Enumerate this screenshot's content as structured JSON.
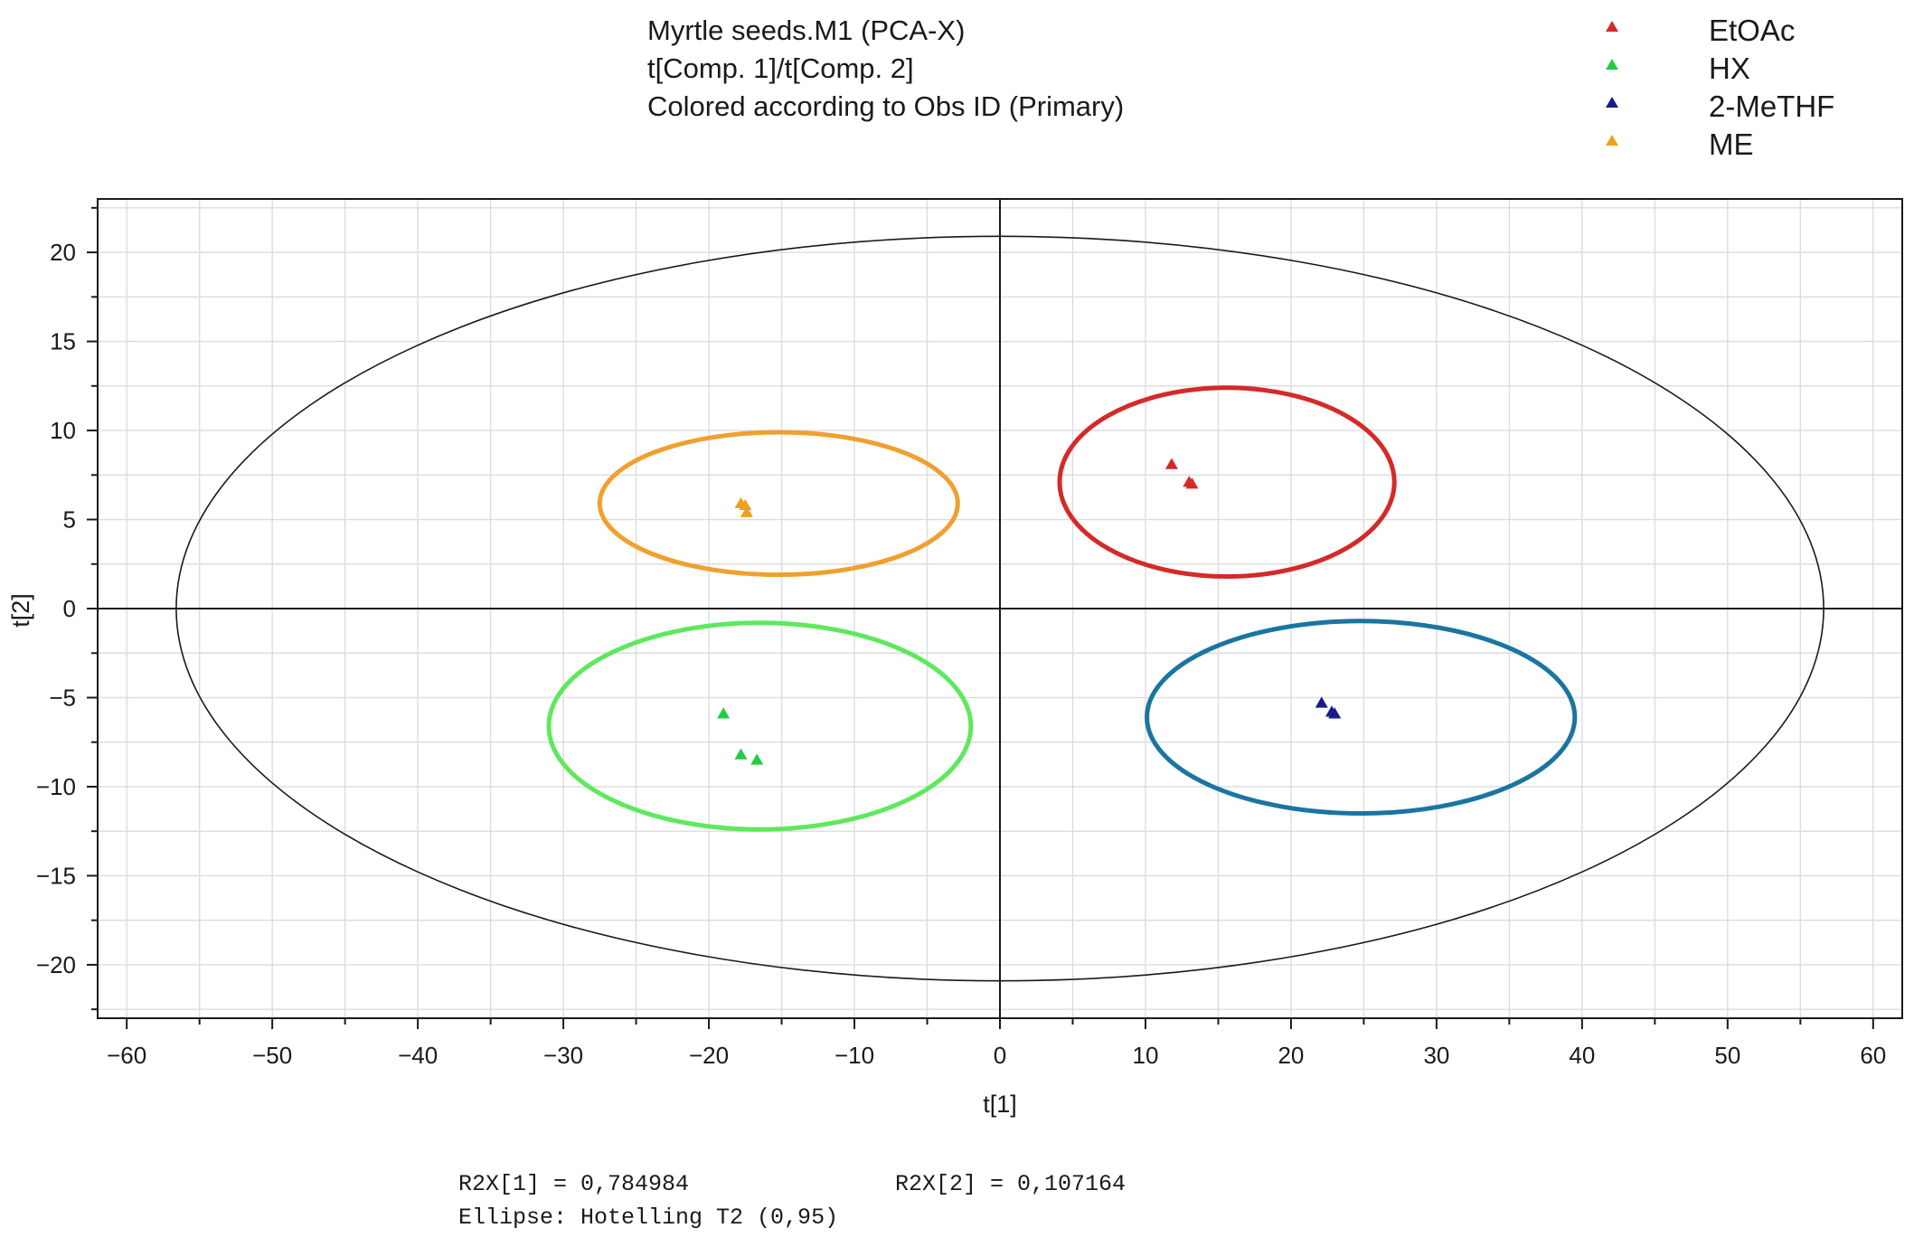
{
  "chart_data": {
    "type": "scatter",
    "title_lines": [
      "Myrtle  seeds.M1 (PCA-X)",
      "t[Comp. 1]/t[Comp. 2]",
      "Colored according to Obs ID  (Primary)"
    ],
    "xlabel": "t[1]",
    "ylabel": "t[2]",
    "xlim": [
      -62,
      62
    ],
    "ylim": [
      -23,
      23
    ],
    "xticks": [
      -60,
      -50,
      -40,
      -30,
      -20,
      -10,
      0,
      10,
      20,
      30,
      40,
      50,
      60
    ],
    "yticks": [
      -20,
      -15,
      -10,
      -5,
      0,
      5,
      10,
      15,
      20
    ],
    "xtick_labels": [
      "−60",
      "−50",
      "−40",
      "−30",
      "−20",
      "−10",
      "0",
      "10",
      "20",
      "30",
      "40",
      "50",
      "60"
    ],
    "ytick_labels": [
      "−20",
      "−15",
      "−10",
      "−5",
      "0",
      "5",
      "10",
      "15",
      "20"
    ],
    "grid": true,
    "legend_position": "top-right",
    "series": [
      {
        "name": "EtOAc",
        "color": "#d42a2a",
        "marker": "triangle",
        "points": [
          [
            11.8,
            8.1
          ],
          [
            13.2,
            7.0
          ],
          [
            13.0,
            7.1
          ]
        ]
      },
      {
        "name": "HX",
        "color": "#22cc44",
        "marker": "triangle",
        "points": [
          [
            -19.0,
            -5.9
          ],
          [
            -17.8,
            -8.2
          ],
          [
            -16.7,
            -8.5
          ]
        ]
      },
      {
        "name": "2-MeTHF",
        "color": "#1a1a8c",
        "marker": "triangle",
        "points": [
          [
            22.1,
            -5.3
          ],
          [
            22.8,
            -5.8
          ],
          [
            23.0,
            -5.9
          ]
        ]
      },
      {
        "name": "ME",
        "color": "#f0a020",
        "marker": "triangle",
        "points": [
          [
            -17.8,
            5.9
          ],
          [
            -17.4,
            5.4
          ],
          [
            -17.5,
            5.8
          ]
        ]
      }
    ],
    "hotelling_ellipse": {
      "cx": 0,
      "cy": 0,
      "rx": 56.6,
      "ry": 20.9,
      "color": "#1a1a1a"
    },
    "group_ellipses": [
      {
        "name": "EtOAc",
        "color": "#d42a2a",
        "cx": 15.6,
        "cy": 7.1,
        "rx": 11.5,
        "ry": 5.3
      },
      {
        "name": "HX",
        "color": "#5ee85e",
        "cx": -16.5,
        "cy": -6.6,
        "rx": 14.5,
        "ry": 5.8
      },
      {
        "name": "2-MeTHF",
        "color": "#1a75a0",
        "cx": 24.8,
        "cy": -6.1,
        "rx": 14.7,
        "ry": 5.4
      },
      {
        "name": "ME",
        "color": "#f0a030",
        "cx": -15.2,
        "cy": 5.9,
        "rx": 12.3,
        "ry": 4.0
      }
    ],
    "footer": {
      "r2x1": "R2X[1] = 0,784984",
      "r2x2": "R2X[2] = 0,107164",
      "ellipse_note": "Ellipse: Hotelling T2 (0,95)"
    }
  }
}
